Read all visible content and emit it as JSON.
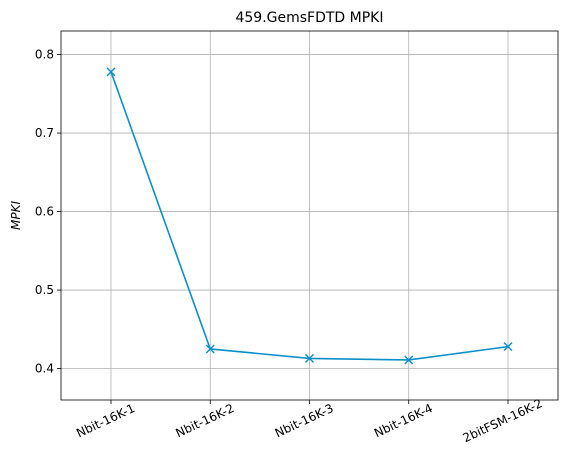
{
  "chart_data": {
    "type": "line",
    "title": "459.GemsFDTD MPKI",
    "xlabel": "",
    "ylabel": "MPKI",
    "categories": [
      "Nbit-16K-1",
      "Nbit-16K-2",
      "Nbit-16K-3",
      "Nbit-16K-4",
      "2bitFSM-16K-2"
    ],
    "series": [
      {
        "values": [
          0.778,
          0.425,
          0.413,
          0.411,
          0.428
        ]
      }
    ],
    "ylim": [
      0.36,
      0.83
    ],
    "yticks": [
      "0.4",
      "0.5",
      "0.6",
      "0.7",
      "0.8"
    ],
    "grid": true,
    "marker": "x",
    "line_color": "#0a8fcb"
  }
}
